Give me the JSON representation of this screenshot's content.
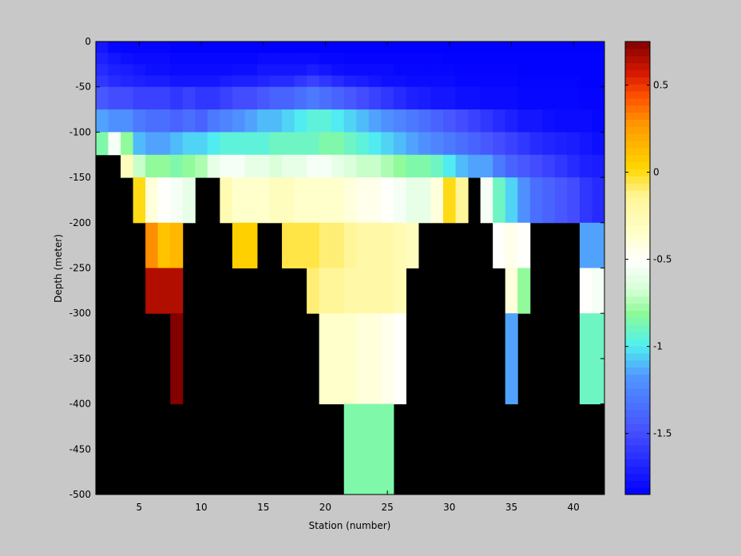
{
  "chart_data": {
    "type": "heatmap",
    "xlabel": "Station (number)",
    "ylabel": "Depth (meter)",
    "xlim": [
      1.5,
      42.5
    ],
    "ylim": [
      -500,
      0
    ],
    "xticks": [
      5,
      10,
      15,
      20,
      25,
      30,
      35,
      40
    ],
    "yticks": [
      0,
      -50,
      -100,
      -150,
      -200,
      -250,
      -300,
      -350,
      -400,
      -450,
      -500
    ],
    "colorbar": {
      "range": [
        -1.85,
        0.75
      ],
      "ticks": [
        0.5,
        0,
        -0.5,
        -1,
        -1.5
      ],
      "colormap": "jet-white-center"
    },
    "background": "#000000",
    "stations_first": 2,
    "depth_bins": [
      [
        0,
        -12.5
      ],
      [
        -12.5,
        -25
      ],
      [
        -25,
        -37.5
      ],
      [
        -37.5,
        -50
      ],
      [
        -50,
        -75
      ],
      [
        -75,
        -100
      ],
      [
        -100,
        -125
      ],
      [
        -125,
        -150
      ],
      [
        -150,
        -200
      ],
      [
        -200,
        -250
      ],
      [
        -250,
        -300
      ],
      [
        -300,
        -400
      ],
      [
        -400,
        -500
      ]
    ],
    "profiles": [
      [
        -1.75,
        -1.7,
        -1.65,
        -1.6,
        -1.45,
        -1.15,
        -0.85
      ],
      [
        -1.82,
        -1.75,
        -1.7,
        -1.65,
        -1.5,
        -1.2,
        -0.55
      ],
      [
        -1.83,
        -1.78,
        -1.72,
        -1.68,
        -1.5,
        -1.2,
        -0.8,
        -0.3
      ],
      [
        -1.83,
        -1.8,
        -1.75,
        -1.7,
        -1.55,
        -1.3,
        -1.1,
        -0.7,
        0.0
      ],
      [
        -1.83,
        -1.8,
        -1.78,
        -1.72,
        -1.55,
        -1.35,
        -1.15,
        -0.8,
        -0.4,
        0.3,
        0.65
      ],
      [
        -1.83,
        -1.8,
        -1.78,
        -1.72,
        -1.55,
        -1.35,
        -1.15,
        -0.8,
        -0.5,
        0.1,
        0.65
      ],
      [
        -1.85,
        -1.82,
        -1.8,
        -1.75,
        -1.6,
        -1.4,
        -1.1,
        -0.85,
        -0.55,
        0.15,
        0.65,
        0.75
      ],
      [
        -1.85,
        -1.82,
        -1.8,
        -1.75,
        -1.55,
        -1.35,
        -1.05,
        -0.8,
        -0.6
      ],
      [
        -1.85,
        -1.82,
        -1.8,
        -1.75,
        -1.6,
        -1.4,
        -1.05,
        -0.75
      ],
      [
        -1.85,
        -1.82,
        -1.8,
        -1.75,
        -1.6,
        -1.3,
        -1.0,
        -0.6
      ],
      [
        -1.85,
        -1.82,
        -1.8,
        -1.72,
        -1.55,
        -1.25,
        -0.95,
        -0.55,
        -0.25
      ],
      [
        -1.85,
        -1.82,
        -1.78,
        -1.7,
        -1.5,
        -1.2,
        -0.95,
        -0.55,
        -0.35,
        0.05
      ],
      [
        -1.85,
        -1.82,
        -1.78,
        -1.7,
        -1.5,
        -1.15,
        -0.95,
        -0.6,
        -0.35,
        0.05
      ],
      [
        -1.85,
        -1.8,
        -1.75,
        -1.68,
        -1.45,
        -1.1,
        -0.95,
        -0.6,
        -0.35
      ],
      [
        -1.85,
        -1.8,
        -1.75,
        -1.65,
        -1.4,
        -1.1,
        -0.9,
        -0.65,
        -0.3
      ],
      [
        -1.85,
        -1.8,
        -1.75,
        -1.65,
        -1.4,
        -1.05,
        -0.9,
        -0.6,
        -0.3,
        -0.05
      ],
      [
        -1.85,
        -1.8,
        -1.75,
        -1.6,
        -1.35,
        -1.0,
        -0.9,
        -0.6,
        -0.35,
        -0.05
      ],
      [
        -1.85,
        -1.8,
        -1.72,
        -1.55,
        -1.3,
        -0.95,
        -0.9,
        -0.55,
        -0.35,
        -0.05,
        -0.1
      ],
      [
        -1.85,
        -1.82,
        -1.75,
        -1.6,
        -1.35,
        -0.95,
        -0.85,
        -0.55,
        -0.35,
        -0.1,
        -0.15,
        -0.35
      ],
      [
        -1.85,
        -1.82,
        -1.78,
        -1.65,
        -1.4,
        -1.0,
        -0.85,
        -0.6,
        -0.35,
        -0.1,
        -0.15,
        -0.35
      ],
      [
        -1.85,
        -1.83,
        -1.8,
        -1.7,
        -1.45,
        -1.05,
        -0.9,
        -0.65,
        -0.4,
        -0.15,
        -0.2,
        -0.35,
        -0.85
      ],
      [
        -1.85,
        -1.83,
        -1.8,
        -1.72,
        -1.5,
        -1.1,
        -0.95,
        -0.7,
        -0.45,
        -0.2,
        -0.2,
        -0.4,
        -0.85
      ],
      [
        -1.85,
        -1.83,
        -1.8,
        -1.75,
        -1.55,
        -1.15,
        -1.0,
        -0.7,
        -0.45,
        -0.2,
        -0.2,
        -0.4,
        -0.85
      ],
      [
        -1.85,
        -1.83,
        -1.8,
        -1.78,
        -1.6,
        -1.2,
        -1.05,
        -0.75,
        -0.5,
        -0.2,
        -0.2,
        -0.45,
        -0.85
      ],
      [
        -1.85,
        -1.83,
        -1.82,
        -1.78,
        -1.65,
        -1.25,
        -1.1,
        -0.8,
        -0.55,
        -0.25,
        -0.25,
        -0.5
      ],
      [
        -1.85,
        -1.83,
        -1.82,
        -1.8,
        -1.7,
        -1.3,
        -1.15,
        -0.85,
        -0.6,
        -0.3
      ],
      [
        -1.85,
        -1.83,
        -1.82,
        -1.8,
        -1.72,
        -1.35,
        -1.2,
        -0.85,
        -0.6
      ],
      [
        -1.85,
        -1.83,
        -1.82,
        -1.8,
        -1.75,
        -1.4,
        -1.25,
        -0.9,
        -0.4
      ],
      [
        -1.85,
        -1.84,
        -1.82,
        -1.8,
        -1.75,
        -1.45,
        -1.3,
        -1.0,
        0.0
      ],
      [
        -1.85,
        -1.84,
        -1.83,
        -1.82,
        -1.78,
        -1.5,
        -1.35,
        -1.1,
        -0.15
      ],
      [
        -1.85,
        -1.84,
        -1.83,
        -1.82,
        -1.78,
        -1.55,
        -1.4,
        -1.15
      ],
      [
        -1.85,
        -1.84,
        -1.83,
        -1.82,
        -1.8,
        -1.6,
        -1.45,
        -1.15,
        -0.55
      ],
      [
        -1.85,
        -1.84,
        -1.83,
        -1.82,
        -1.8,
        -1.65,
        -1.5,
        -1.3,
        -0.9,
        -0.5
      ],
      [
        -1.85,
        -1.84,
        -1.83,
        -1.82,
        -1.8,
        -1.7,
        -1.55,
        -1.4,
        -1.05,
        -0.45,
        -0.4,
        -1.15
      ],
      [
        -1.85,
        -1.84,
        -1.84,
        -1.83,
        -1.82,
        -1.75,
        -1.6,
        -1.45,
        -1.2,
        -0.5,
        -0.8
      ],
      [
        -1.85,
        -1.84,
        -1.84,
        -1.83,
        -1.82,
        -1.75,
        -1.65,
        -1.5,
        -1.35
      ],
      [
        -1.85,
        -1.84,
        -1.84,
        -1.83,
        -1.82,
        -1.78,
        -1.68,
        -1.55,
        -1.4
      ],
      [
        -1.85,
        -1.84,
        -1.84,
        -1.83,
        -1.82,
        -1.8,
        -1.7,
        -1.6,
        -1.45
      ],
      [
        -1.85,
        -1.84,
        -1.84,
        -1.83,
        -1.82,
        -1.8,
        -1.72,
        -1.65,
        -1.5
      ],
      [
        -1.85,
        -1.84,
        -1.84,
        -1.84,
        -1.83,
        -1.8,
        -1.75,
        -1.7,
        -1.6,
        -1.15,
        -0.5,
        -0.9
      ],
      [
        -1.85,
        -1.84,
        -1.84,
        -1.84,
        -1.83,
        -1.82,
        -1.78,
        -1.72,
        -1.65,
        -1.15,
        -0.55,
        -0.9
      ]
    ]
  }
}
